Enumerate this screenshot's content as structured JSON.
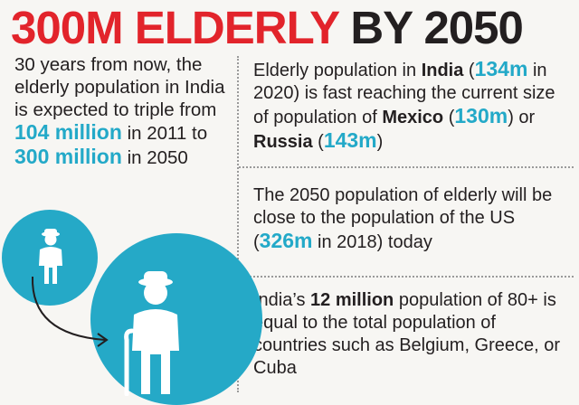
{
  "headline": {
    "part1": "300M ELDERLY",
    "part2": "BY 2050"
  },
  "left": {
    "t1": "30 years from now, the elderly population in India is expected to triple from ",
    "h1": "104 million",
    "t2": " in 2011 to ",
    "h2": "300 million",
    "t3": " in 2050"
  },
  "block1": {
    "t1": "Elderly population in ",
    "b1": "India",
    "t2": " (",
    "h1": "134m",
    "t3": " in 2020) is fast reaching the current size of population of ",
    "b2": "Mexico",
    "t4": " (",
    "h2": "130m",
    "t5": ") or ",
    "b3": "Russia",
    "t6": " (",
    "h3": "143m",
    "t7": ")"
  },
  "block2": {
    "t1": "The 2050 population of elderly will be close to the population of the US (",
    "h1": "326m",
    "t2": " in  2018) today"
  },
  "block3": {
    "t1": "India’s ",
    "b1": "12 million",
    "t2": " population of 80+ is equal to the total population of countries such as Belgium, Greece, or Cuba"
  },
  "icons": {
    "small": "elderly-person-icon",
    "big": "elderly-person-with-cane-icon",
    "arrow": "curved-arrow-icon"
  },
  "colors": {
    "headline_red": "#e2242b",
    "accent_blue": "#23a9c8",
    "circle_blue": "#25a9c7",
    "text_dark": "#231f20"
  }
}
